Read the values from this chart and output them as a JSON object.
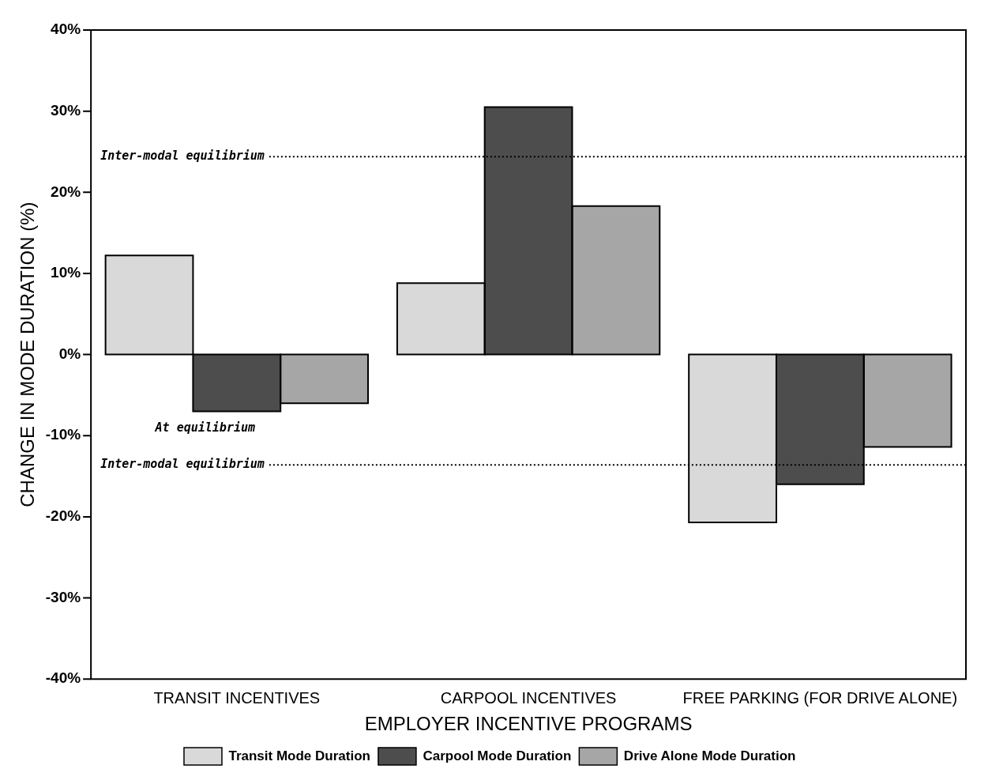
{
  "chart_data": {
    "type": "bar",
    "xlabel": "EMPLOYER INCENTIVE PROGRAMS",
    "ylabel": "CHANGE IN MODE DURATION (%)",
    "categories": [
      "TRANSIT INCENTIVES",
      "CARPOOL INCENTIVES",
      "FREE PARKING (FOR DRIVE ALONE)"
    ],
    "series": [
      {
        "name": "Transit Mode Duration",
        "color": "#d9d9d9",
        "values": [
          12.2,
          8.8,
          -20.7
        ]
      },
      {
        "name": "Carpool Mode Duration",
        "color": "#4d4d4d",
        "values": [
          -7,
          30.5,
          -16
        ]
      },
      {
        "name": "Drive Alone Mode Duration",
        "color": "#a6a6a6",
        "values": [
          -6,
          18.3,
          -11.4
        ]
      }
    ],
    "ylim": [
      -40,
      40
    ],
    "yticks": [
      {
        "value": -40,
        "label": "-40%"
      },
      {
        "value": -30,
        "label": "-30%"
      },
      {
        "value": -20,
        "label": "-20%"
      },
      {
        "value": -10,
        "label": "-10%"
      },
      {
        "value": 0,
        "label": "0%"
      },
      {
        "value": 10,
        "label": "10%"
      },
      {
        "value": 20,
        "label": "20%"
      },
      {
        "value": 30,
        "label": "30%"
      },
      {
        "value": 40,
        "label": "40%"
      }
    ],
    "ref_lines": [
      {
        "axis": "y",
        "value": 24.4,
        "label": "Inter-modal equilibrium",
        "line_style": "dotted"
      },
      {
        "axis": "y",
        "value": -13.6,
        "label": "Inter-modal equilibrium",
        "line_style": "dotted"
      }
    ],
    "annotations": [
      {
        "text": "At equilibrium",
        "x": "TRANSIT INCENTIVES",
        "y": -7
      }
    ],
    "grid": false,
    "legend": "bottom"
  }
}
